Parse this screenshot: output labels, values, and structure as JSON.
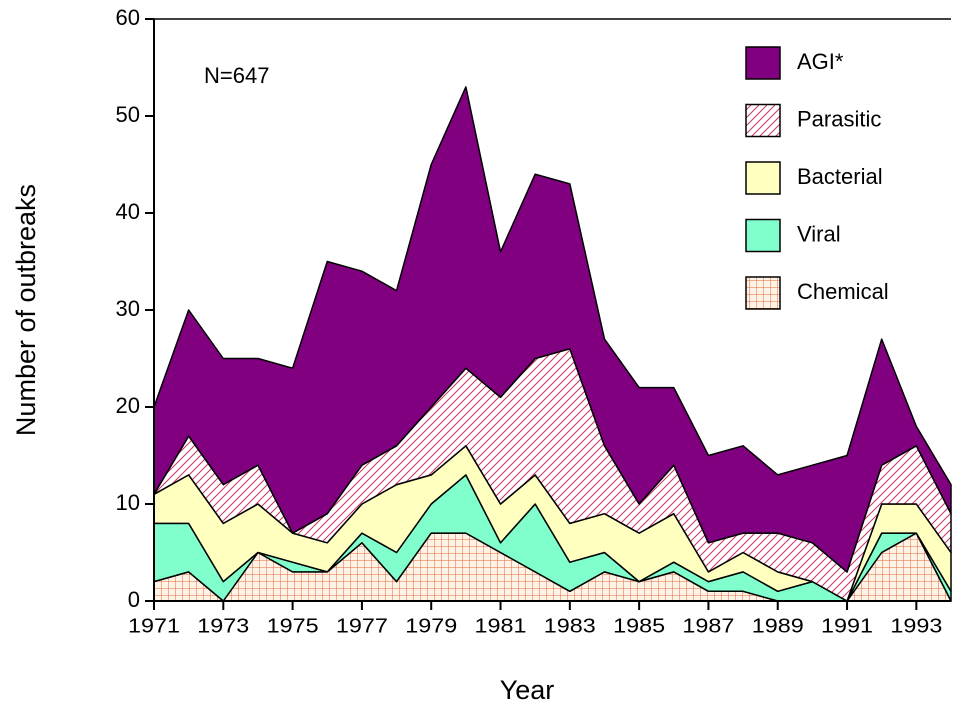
{
  "chart_data": {
    "type": "stacked-area",
    "x_label": "Year",
    "y_label": "Number of outbreaks",
    "annotation": "N=647",
    "x": [
      1971,
      1972,
      1973,
      1974,
      1975,
      1976,
      1977,
      1978,
      1979,
      1980,
      1981,
      1982,
      1983,
      1984,
      1985,
      1986,
      1987,
      1988,
      1989,
      1990,
      1991,
      1992,
      1993,
      1994
    ],
    "series": [
      {
        "name": "Chemical",
        "color": "#e06a3a",
        "background": "#fff2e6",
        "pattern": "grid",
        "values": [
          2,
          3,
          0,
          5,
          3,
          3,
          6,
          2,
          7,
          7,
          5,
          3,
          1,
          3,
          2,
          3,
          1,
          1,
          0,
          0,
          0,
          5,
          7,
          0
        ]
      },
      {
        "name": "Viral",
        "color": "#80ffcc",
        "values": [
          6,
          5,
          2,
          0,
          1,
          0,
          1,
          3,
          3,
          6,
          1,
          7,
          3,
          2,
          0,
          1,
          1,
          2,
          1,
          2,
          0,
          2,
          0,
          1
        ]
      },
      {
        "name": "Bacterial",
        "color": "#ffffc0",
        "values": [
          3,
          5,
          6,
          5,
          3,
          3,
          3,
          7,
          3,
          3,
          4,
          3,
          4,
          4,
          5,
          5,
          1,
          2,
          2,
          0,
          0,
          3,
          3,
          4
        ]
      },
      {
        "name": "Parasitic",
        "color": "#cc3366",
        "background": "#ffffff",
        "pattern": "hatch",
        "values": [
          0,
          4,
          4,
          4,
          0,
          3,
          4,
          4,
          7,
          8,
          11,
          12,
          18,
          7,
          3,
          5,
          3,
          2,
          4,
          4,
          3,
          4,
          6,
          4
        ]
      },
      {
        "name": "AGI*",
        "color": "#800080",
        "values": [
          9,
          13,
          13,
          11,
          17,
          26,
          20,
          16,
          25,
          29,
          15,
          19,
          17,
          11,
          12,
          8,
          9,
          9,
          6,
          8,
          12,
          13,
          2,
          3
        ]
      }
    ],
    "xlim": [
      1971,
      1994
    ],
    "xticks": [
      1971,
      1973,
      1975,
      1977,
      1979,
      1981,
      1983,
      1985,
      1987,
      1989,
      1991,
      1993
    ],
    "ylim": [
      0,
      60
    ],
    "yticks": [
      0,
      10,
      20,
      30,
      40,
      50,
      60
    ],
    "legend": "top-right"
  }
}
